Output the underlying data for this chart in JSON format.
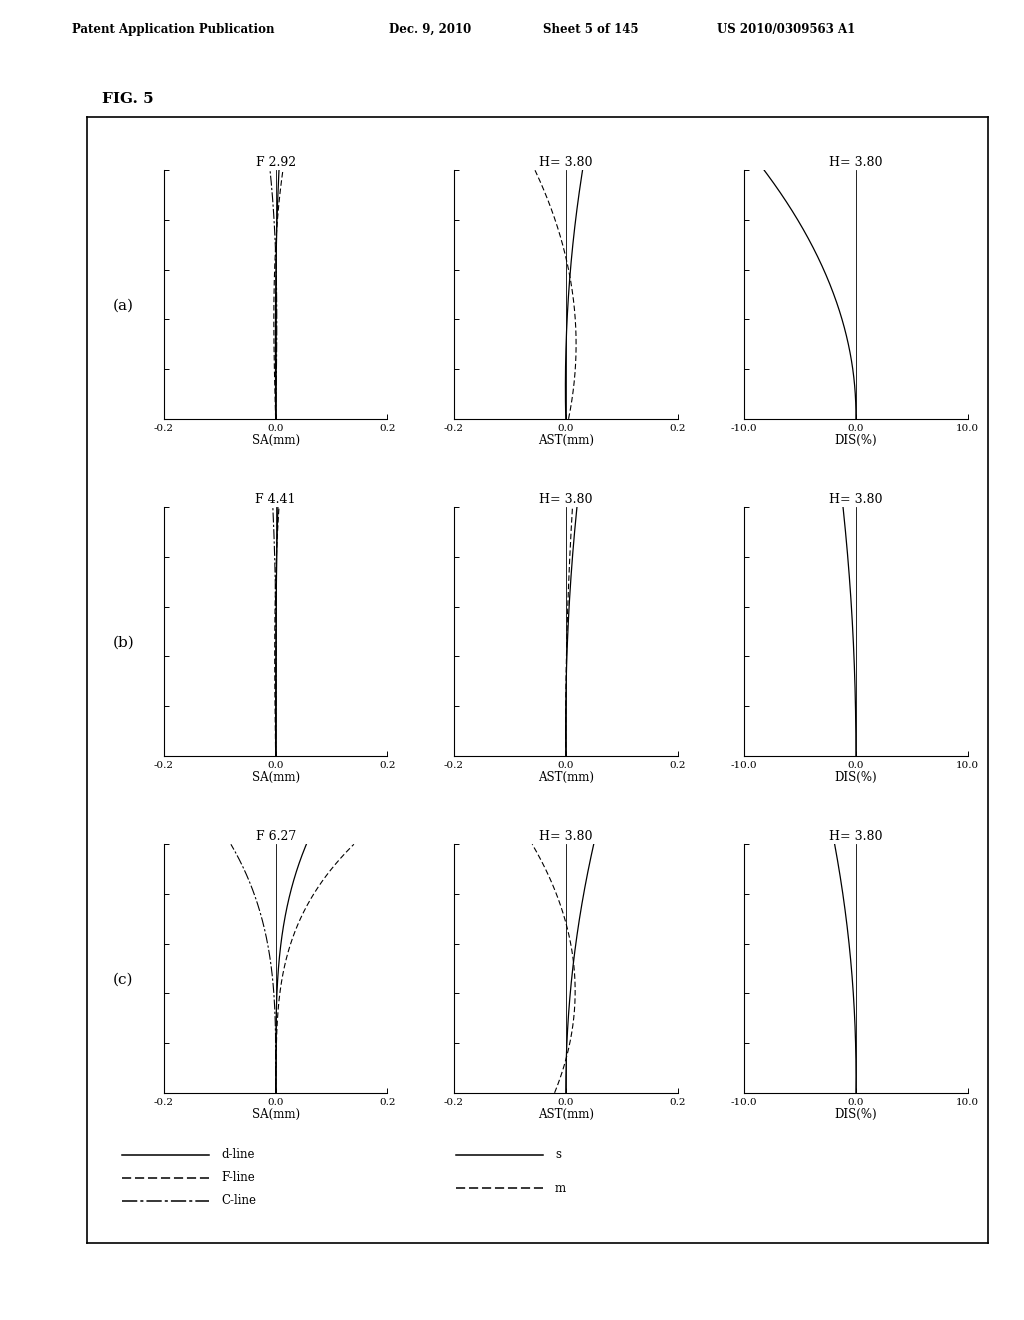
{
  "title": "FIG. 5",
  "header_left": "Patent Application Publication",
  "header_mid1": "Dec. 9, 2010",
  "header_mid2": "Sheet 5 of 145",
  "header_right": "US 2010/0309563 A1",
  "rows": [
    {
      "label": "(a)",
      "f_number": "F 2.92"
    },
    {
      "label": "(b)",
      "f_number": "F 4.41"
    },
    {
      "label": "(c)",
      "f_number": "F 6.27"
    }
  ],
  "h_label": "H= 3.80",
  "sa_xlim": [
    -0.2,
    0.2
  ],
  "ast_xlim": [
    -0.2,
    0.2
  ],
  "dis_xlim": [
    -10.0,
    10.0
  ],
  "ylim": [
    0.0,
    3.8
  ],
  "ytick_count": 5,
  "sa_xticks": [
    -0.2,
    0.0,
    0.2
  ],
  "ast_xticks": [
    -0.2,
    0.0,
    0.2
  ],
  "dis_xticks": [
    -10.0,
    0.0,
    10.0
  ],
  "xlabel_sa": "SA(mm)",
  "xlabel_ast": "AST(mm)",
  "xlabel_dis": "DIS(%)",
  "background": "#ffffff"
}
